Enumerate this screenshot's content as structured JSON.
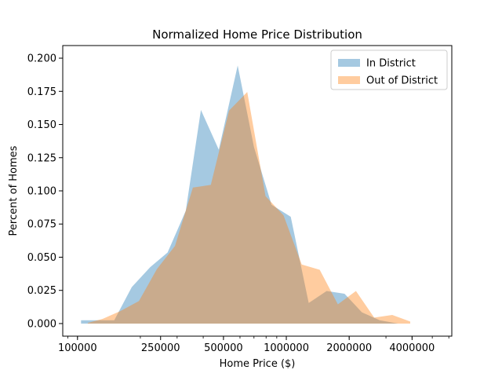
{
  "chart_data": {
    "type": "area",
    "title": "Normalized Home Price Distribution",
    "xlabel": "Home Price ($)",
    "ylabel": "Percent of Homes",
    "x_scale": "log",
    "xlim": [
      85000,
      6200000
    ],
    "ylim": [
      -0.0095,
      0.2095
    ],
    "x_ticks": [
      100000,
      250000,
      500000,
      1000000,
      2000000,
      4000000
    ],
    "x_tick_labels": [
      "100000",
      "250000",
      "500000",
      "1000000",
      "2000000",
      "4000000"
    ],
    "y_ticks": [
      0.0,
      0.025,
      0.05,
      0.075,
      0.1,
      0.125,
      0.15,
      0.175,
      0.2
    ],
    "y_tick_labels": [
      "0.000",
      "0.025",
      "0.050",
      "0.075",
      "0.100",
      "0.125",
      "0.150",
      "0.175",
      "0.200"
    ],
    "grid": false,
    "legend_position": "top-right",
    "series": [
      {
        "name": "In District",
        "color": "#1f77b4",
        "opacity": 0.4,
        "points": [
          [
            104000,
            0.0025
          ],
          [
            123000,
            0.0025
          ],
          [
            150000,
            0.0025
          ],
          [
            182000,
            0.0275
          ],
          [
            223000,
            0.0425
          ],
          [
            270000,
            0.0535
          ],
          [
            330000,
            0.085
          ],
          [
            390000,
            0.161
          ],
          [
            475000,
            0.131
          ],
          [
            585000,
            0.1945
          ],
          [
            700000,
            0.133
          ],
          [
            850000,
            0.0895
          ],
          [
            1050000,
            0.0805
          ],
          [
            1280000,
            0.0155
          ],
          [
            1560000,
            0.0245
          ],
          [
            1900000,
            0.0225
          ],
          [
            2300000,
            0.0085
          ],
          [
            2800000,
            0.0025
          ],
          [
            3430000,
            0.0
          ]
        ]
      },
      {
        "name": "Out of District",
        "color": "#ff7f0e",
        "opacity": 0.4,
        "points": [
          [
            112000,
            0.0005
          ],
          [
            132000,
            0.0035
          ],
          [
            161000,
            0.0095
          ],
          [
            197000,
            0.017
          ],
          [
            240000,
            0.041
          ],
          [
            293000,
            0.0585
          ],
          [
            357000,
            0.1025
          ],
          [
            435000,
            0.1045
          ],
          [
            532000,
            0.1605
          ],
          [
            650000,
            0.1745
          ],
          [
            795000,
            0.096
          ],
          [
            970000,
            0.0815
          ],
          [
            1185000,
            0.0445
          ],
          [
            1445000,
            0.0405
          ],
          [
            1765000,
            0.0145
          ],
          [
            2155000,
            0.0245
          ],
          [
            2635000,
            0.0045
          ],
          [
            3215000,
            0.0065
          ],
          [
            3920000,
            0.0015
          ]
        ]
      }
    ]
  }
}
